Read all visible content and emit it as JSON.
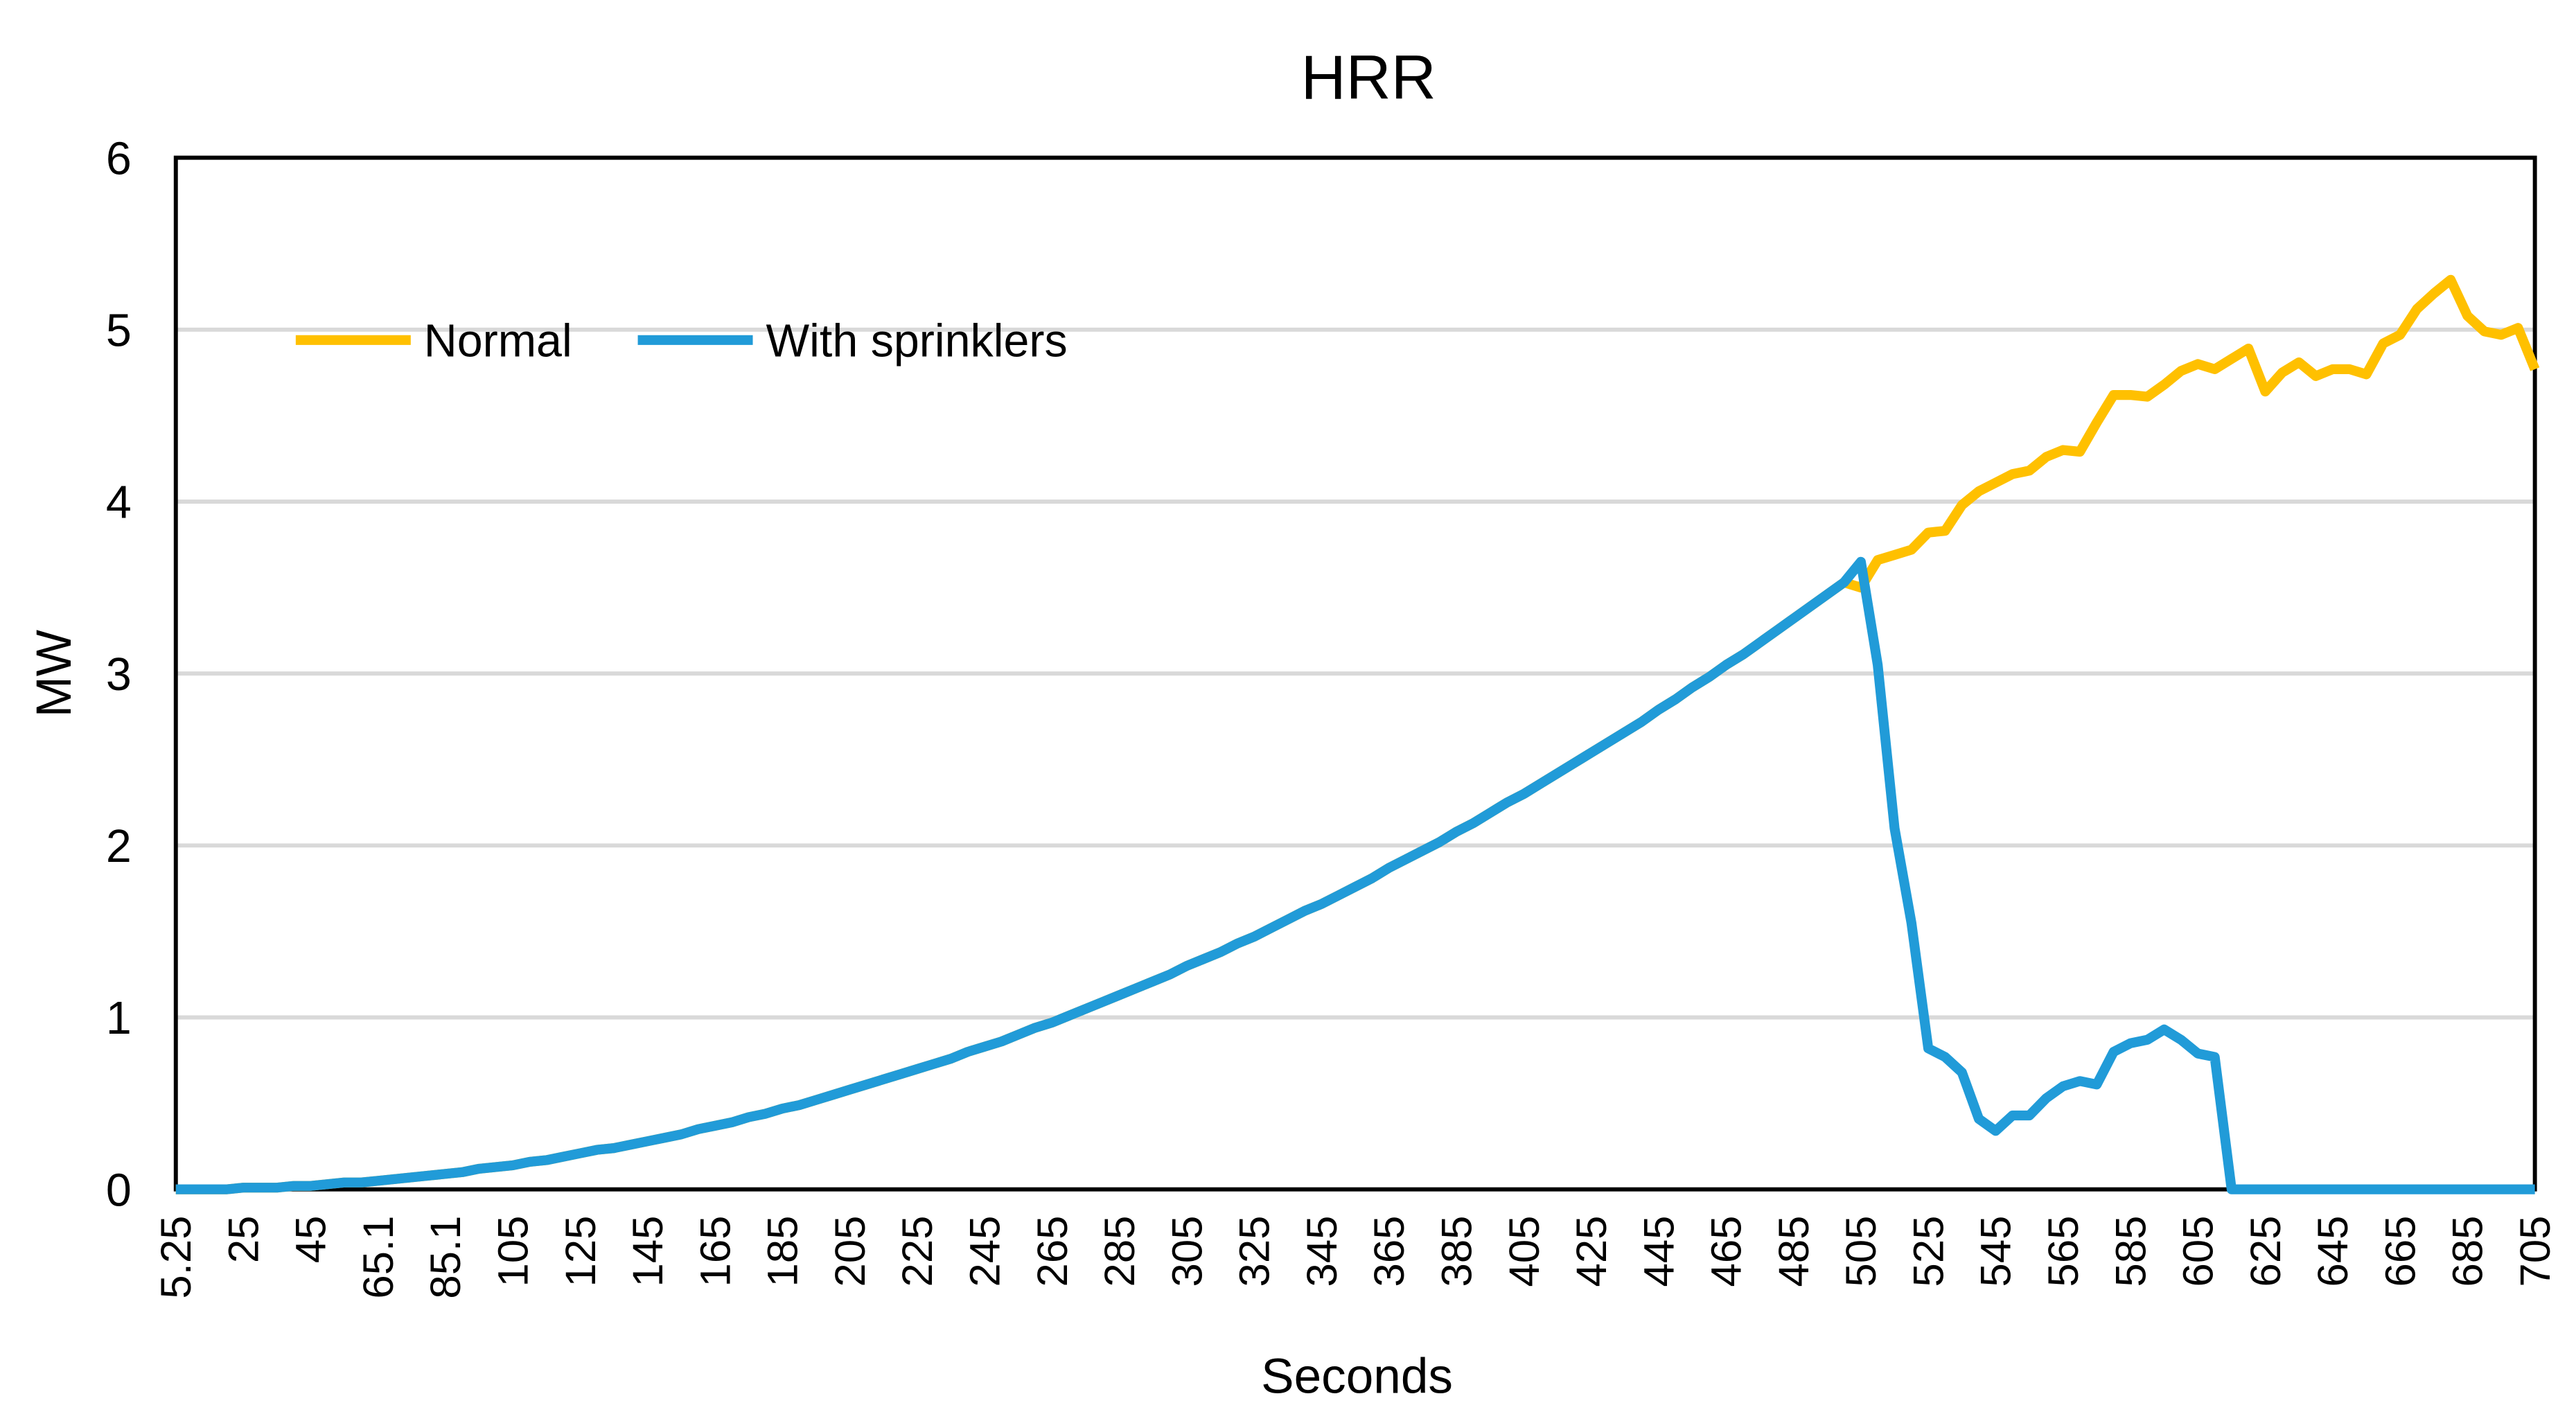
{
  "chart_data": {
    "type": "line",
    "title": "HRR",
    "x_label": "Seconds",
    "y_label": "MW",
    "categories": [
      "5.25",
      null,
      null,
      null,
      "25",
      null,
      null,
      null,
      "45",
      null,
      null,
      null,
      "65.1",
      null,
      null,
      null,
      "85.1",
      null,
      null,
      null,
      "105",
      null,
      null,
      null,
      "125",
      null,
      null,
      null,
      "145",
      null,
      null,
      null,
      "165",
      null,
      null,
      null,
      "185",
      null,
      null,
      null,
      "205",
      null,
      null,
      null,
      "225",
      null,
      null,
      null,
      "245",
      null,
      null,
      null,
      "265",
      null,
      null,
      null,
      "285",
      null,
      null,
      null,
      "305",
      null,
      null,
      null,
      "325",
      null,
      null,
      null,
      "345",
      null,
      null,
      null,
      "365",
      null,
      null,
      null,
      "385",
      null,
      null,
      null,
      "405",
      null,
      null,
      null,
      "425",
      null,
      null,
      null,
      "445",
      null,
      null,
      null,
      "465",
      null,
      null,
      null,
      "485",
      null,
      null,
      null,
      "505",
      null,
      null,
      null,
      "525",
      null,
      null,
      null,
      "545",
      null,
      null,
      null,
      "565",
      null,
      null,
      null,
      "585",
      null,
      null,
      null,
      "605",
      null,
      null,
      null,
      "625",
      null,
      null,
      null,
      "645",
      null,
      null,
      null,
      "665",
      null,
      null,
      null,
      "685",
      null,
      null,
      null,
      "705"
    ],
    "series": [
      {
        "name": "Normal",
        "color": "#ffc000",
        "values": [
          0,
          0,
          0,
          0,
          0.01,
          0.01,
          0.01,
          0.02,
          0.02,
          0.03,
          0.04,
          0.04,
          0.05,
          0.06,
          0.07,
          0.08,
          0.09,
          0.1,
          0.12,
          0.13,
          0.14,
          0.16,
          0.17,
          0.19,
          0.21,
          0.23,
          0.24,
          0.26,
          0.28,
          0.3,
          0.32,
          0.35,
          0.37,
          0.39,
          0.42,
          0.44,
          0.47,
          0.49,
          0.52,
          0.55,
          0.58,
          0.61,
          0.64,
          0.67,
          0.7,
          0.73,
          0.76,
          0.8,
          0.83,
          0.86,
          0.9,
          0.94,
          0.97,
          1.01,
          1.05,
          1.09,
          1.13,
          1.17,
          1.21,
          1.25,
          1.3,
          1.34,
          1.38,
          1.43,
          1.47,
          1.52,
          1.57,
          1.62,
          1.66,
          1.71,
          1.76,
          1.81,
          1.87,
          1.92,
          1.97,
          2.02,
          2.08,
          2.13,
          2.19,
          2.25,
          2.3,
          2.36,
          2.42,
          2.48,
          2.54,
          2.6,
          2.66,
          2.72,
          2.79,
          2.85,
          2.92,
          2.98,
          3.05,
          3.11,
          3.18,
          3.25,
          3.32,
          3.39,
          3.46,
          3.53,
          3.5,
          3.66,
          3.69,
          3.72,
          3.82,
          3.83,
          3.98,
          4.06,
          4.11,
          4.16,
          4.18,
          4.26,
          4.3,
          4.29,
          4.46,
          4.62,
          4.62,
          4.61,
          4.68,
          4.76,
          4.8,
          4.77,
          4.83,
          4.89,
          4.64,
          4.75,
          4.81,
          4.73,
          4.77,
          4.77,
          4.74,
          4.92,
          4.97,
          5.12,
          5.21,
          5.29,
          5.08,
          4.99,
          4.97,
          5.01,
          4.77
        ]
      },
      {
        "name": "With sprinklers",
        "color": "#219bd8",
        "values": [
          0,
          0,
          0,
          0,
          0.01,
          0.01,
          0.01,
          0.02,
          0.02,
          0.03,
          0.04,
          0.04,
          0.05,
          0.06,
          0.07,
          0.08,
          0.09,
          0.1,
          0.12,
          0.13,
          0.14,
          0.16,
          0.17,
          0.19,
          0.21,
          0.23,
          0.24,
          0.26,
          0.28,
          0.3,
          0.32,
          0.35,
          0.37,
          0.39,
          0.42,
          0.44,
          0.47,
          0.49,
          0.52,
          0.55,
          0.58,
          0.61,
          0.64,
          0.67,
          0.7,
          0.73,
          0.76,
          0.8,
          0.83,
          0.86,
          0.9,
          0.94,
          0.97,
          1.01,
          1.05,
          1.09,
          1.13,
          1.17,
          1.21,
          1.25,
          1.3,
          1.34,
          1.38,
          1.43,
          1.47,
          1.52,
          1.57,
          1.62,
          1.66,
          1.71,
          1.76,
          1.81,
          1.87,
          1.92,
          1.97,
          2.02,
          2.08,
          2.13,
          2.19,
          2.25,
          2.3,
          2.36,
          2.42,
          2.48,
          2.54,
          2.6,
          2.66,
          2.72,
          2.79,
          2.85,
          2.92,
          2.98,
          3.05,
          3.11,
          3.18,
          3.25,
          3.32,
          3.39,
          3.46,
          3.53,
          3.65,
          3.05,
          2.1,
          1.55,
          0.82,
          0.77,
          0.68,
          0.41,
          0.34,
          0.43,
          0.43,
          0.53,
          0.6,
          0.63,
          0.61,
          0.8,
          0.85,
          0.87,
          0.93,
          0.87,
          0.79,
          0.77,
          0,
          0,
          0,
          0,
          0,
          0,
          0,
          0,
          0,
          0,
          0,
          0,
          0,
          0,
          0,
          0,
          0,
          0,
          0
        ]
      }
    ],
    "ylim": [
      0,
      6
    ],
    "yticks": [
      0,
      1,
      2,
      3,
      4,
      5,
      6
    ],
    "grid": true,
    "legend": "top-left"
  }
}
